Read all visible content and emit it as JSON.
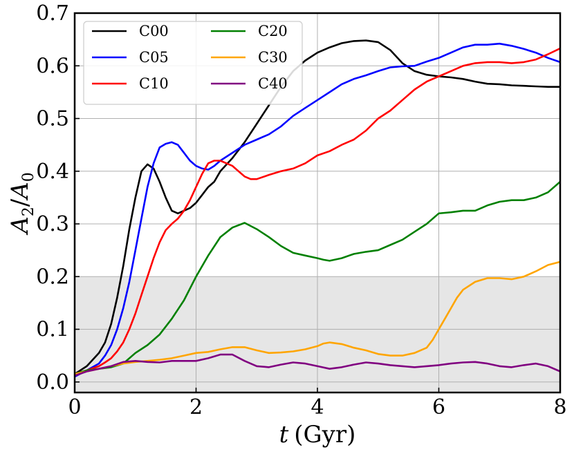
{
  "chart_data": {
    "type": "line",
    "xlabel": {
      "var": "t",
      "unit": "(Gyr)"
    },
    "ylabel": {
      "base": "A",
      "num_sub": "2",
      "slash": "/",
      "den_sub": "0"
    },
    "xlim": [
      0,
      8
    ],
    "ylim": [
      -0.02,
      0.7
    ],
    "xticks": [
      0,
      2,
      4,
      6,
      8
    ],
    "yticks": [
      0.0,
      0.1,
      0.2,
      0.3,
      0.4,
      0.5,
      0.6,
      0.7
    ],
    "ytick_labels": [
      "0.0",
      "0.1",
      "0.2",
      "0.3",
      "0.4",
      "0.5",
      "0.6",
      "0.7"
    ],
    "grid": true,
    "shaded_band": {
      "y0": -0.02,
      "y1": 0.2,
      "color": "#e6e6e6"
    },
    "legend": {
      "placement": "top-left",
      "columns": 2
    },
    "series": [
      {
        "name": "C00",
        "color": "#000000",
        "x": [
          0,
          0.2,
          0.4,
          0.5,
          0.6,
          0.7,
          0.8,
          0.9,
          1.0,
          1.1,
          1.2,
          1.3,
          1.4,
          1.5,
          1.6,
          1.7,
          1.8,
          1.9,
          2.0,
          2.1,
          2.2,
          2.3,
          2.4,
          2.6,
          2.8,
          3.0,
          3.2,
          3.4,
          3.6,
          3.8,
          4.0,
          4.2,
          4.4,
          4.6,
          4.8,
          5.0,
          5.2,
          5.4,
          5.6,
          5.8,
          6.0,
          6.2,
          6.4,
          6.6,
          6.8,
          7.0,
          7.2,
          7.4,
          7.6,
          7.8,
          8.0
        ],
        "y": [
          0.015,
          0.03,
          0.055,
          0.075,
          0.11,
          0.16,
          0.22,
          0.29,
          0.35,
          0.4,
          0.413,
          0.405,
          0.38,
          0.35,
          0.325,
          0.32,
          0.325,
          0.33,
          0.34,
          0.355,
          0.37,
          0.38,
          0.4,
          0.425,
          0.455,
          0.49,
          0.525,
          0.56,
          0.59,
          0.61,
          0.625,
          0.635,
          0.643,
          0.647,
          0.648,
          0.645,
          0.63,
          0.605,
          0.59,
          0.583,
          0.58,
          0.578,
          0.575,
          0.57,
          0.566,
          0.565,
          0.563,
          0.562,
          0.561,
          0.56,
          0.56
        ]
      },
      {
        "name": "C05",
        "color": "#0000ff",
        "x": [
          0,
          0.2,
          0.4,
          0.5,
          0.6,
          0.7,
          0.8,
          0.9,
          1.0,
          1.1,
          1.2,
          1.3,
          1.4,
          1.5,
          1.6,
          1.7,
          1.8,
          1.9,
          2.0,
          2.1,
          2.2,
          2.3,
          2.4,
          2.6,
          2.8,
          3.0,
          3.2,
          3.4,
          3.6,
          3.8,
          4.0,
          4.2,
          4.4,
          4.6,
          4.8,
          5.0,
          5.2,
          5.4,
          5.6,
          5.8,
          6.0,
          6.2,
          6.4,
          6.6,
          6.8,
          7.0,
          7.2,
          7.4,
          7.6,
          7.8,
          8.0
        ],
        "y": [
          0.01,
          0.022,
          0.035,
          0.05,
          0.07,
          0.1,
          0.14,
          0.19,
          0.25,
          0.31,
          0.37,
          0.415,
          0.445,
          0.452,
          0.455,
          0.45,
          0.435,
          0.42,
          0.41,
          0.405,
          0.403,
          0.41,
          0.42,
          0.435,
          0.45,
          0.46,
          0.47,
          0.485,
          0.505,
          0.52,
          0.535,
          0.55,
          0.565,
          0.575,
          0.582,
          0.59,
          0.597,
          0.599,
          0.6,
          0.608,
          0.615,
          0.625,
          0.635,
          0.64,
          0.64,
          0.642,
          0.638,
          0.632,
          0.625,
          0.615,
          0.607
        ]
      },
      {
        "name": "C10",
        "color": "#ff0000",
        "x": [
          0,
          0.2,
          0.4,
          0.5,
          0.6,
          0.7,
          0.8,
          0.9,
          1.0,
          1.1,
          1.2,
          1.3,
          1.4,
          1.5,
          1.6,
          1.7,
          1.8,
          1.9,
          2.0,
          2.1,
          2.2,
          2.3,
          2.4,
          2.5,
          2.6,
          2.7,
          2.8,
          2.9,
          3.0,
          3.2,
          3.4,
          3.6,
          3.8,
          4.0,
          4.2,
          4.4,
          4.6,
          4.8,
          5.0,
          5.2,
          5.4,
          5.6,
          5.8,
          6.0,
          6.2,
          6.4,
          6.6,
          6.8,
          7.0,
          7.2,
          7.4,
          7.6,
          7.8,
          8.0
        ],
        "y": [
          0.015,
          0.022,
          0.03,
          0.037,
          0.045,
          0.058,
          0.075,
          0.1,
          0.13,
          0.165,
          0.2,
          0.235,
          0.265,
          0.288,
          0.3,
          0.31,
          0.325,
          0.345,
          0.37,
          0.395,
          0.415,
          0.42,
          0.42,
          0.415,
          0.41,
          0.4,
          0.39,
          0.385,
          0.385,
          0.393,
          0.4,
          0.405,
          0.415,
          0.43,
          0.438,
          0.45,
          0.46,
          0.477,
          0.5,
          0.515,
          0.535,
          0.555,
          0.57,
          0.58,
          0.59,
          0.6,
          0.605,
          0.607,
          0.607,
          0.605,
          0.607,
          0.612,
          0.622,
          0.633
        ]
      },
      {
        "name": "C20",
        "color": "#008000",
        "x": [
          0,
          0.2,
          0.4,
          0.6,
          0.8,
          1.0,
          1.2,
          1.4,
          1.6,
          1.8,
          2.0,
          2.2,
          2.4,
          2.6,
          2.8,
          3.0,
          3.2,
          3.4,
          3.6,
          3.8,
          4.0,
          4.1,
          4.2,
          4.4,
          4.6,
          4.8,
          5.0,
          5.2,
          5.4,
          5.6,
          5.8,
          6.0,
          6.2,
          6.4,
          6.6,
          6.8,
          7.0,
          7.2,
          7.4,
          7.6,
          7.8,
          8.0
        ],
        "y": [
          0.015,
          0.022,
          0.025,
          0.028,
          0.035,
          0.055,
          0.07,
          0.09,
          0.12,
          0.155,
          0.2,
          0.24,
          0.275,
          0.293,
          0.302,
          0.29,
          0.275,
          0.258,
          0.245,
          0.24,
          0.235,
          0.232,
          0.23,
          0.235,
          0.243,
          0.247,
          0.25,
          0.26,
          0.27,
          0.285,
          0.3,
          0.32,
          0.322,
          0.325,
          0.325,
          0.335,
          0.342,
          0.345,
          0.345,
          0.35,
          0.36,
          0.38
        ]
      },
      {
        "name": "C30",
        "color": "#ffa500",
        "x": [
          0,
          0.2,
          0.4,
          0.6,
          0.8,
          1.0,
          1.2,
          1.4,
          1.6,
          1.8,
          2.0,
          2.2,
          2.4,
          2.6,
          2.8,
          3.0,
          3.2,
          3.4,
          3.6,
          3.8,
          4.0,
          4.1,
          4.2,
          4.4,
          4.6,
          4.8,
          5.0,
          5.2,
          5.4,
          5.6,
          5.8,
          5.9,
          6.0,
          6.1,
          6.2,
          6.3,
          6.4,
          6.6,
          6.8,
          7.0,
          7.2,
          7.4,
          7.6,
          7.8,
          8.0
        ],
        "y": [
          0.015,
          0.02,
          0.025,
          0.03,
          0.035,
          0.038,
          0.04,
          0.042,
          0.045,
          0.05,
          0.055,
          0.057,
          0.062,
          0.066,
          0.066,
          0.06,
          0.055,
          0.056,
          0.058,
          0.062,
          0.068,
          0.073,
          0.075,
          0.072,
          0.065,
          0.06,
          0.053,
          0.05,
          0.05,
          0.055,
          0.065,
          0.08,
          0.1,
          0.12,
          0.14,
          0.16,
          0.175,
          0.19,
          0.197,
          0.197,
          0.195,
          0.2,
          0.21,
          0.222,
          0.228
        ]
      },
      {
        "name": "C40",
        "color": "#800080",
        "x": [
          0,
          0.2,
          0.4,
          0.6,
          0.8,
          1.0,
          1.2,
          1.4,
          1.6,
          1.8,
          2.0,
          2.2,
          2.4,
          2.6,
          2.8,
          3.0,
          3.2,
          3.4,
          3.6,
          3.8,
          4.0,
          4.2,
          4.4,
          4.6,
          4.8,
          5.0,
          5.2,
          5.4,
          5.6,
          5.8,
          6.0,
          6.2,
          6.4,
          6.6,
          6.8,
          7.0,
          7.2,
          7.4,
          7.6,
          7.8,
          8.0
        ],
        "y": [
          0.012,
          0.02,
          0.025,
          0.03,
          0.038,
          0.04,
          0.038,
          0.037,
          0.04,
          0.04,
          0.04,
          0.045,
          0.052,
          0.052,
          0.04,
          0.03,
          0.028,
          0.033,
          0.037,
          0.035,
          0.03,
          0.025,
          0.028,
          0.033,
          0.037,
          0.035,
          0.032,
          0.03,
          0.028,
          0.03,
          0.032,
          0.035,
          0.037,
          0.038,
          0.035,
          0.03,
          0.028,
          0.032,
          0.035,
          0.03,
          0.02
        ]
      }
    ]
  }
}
